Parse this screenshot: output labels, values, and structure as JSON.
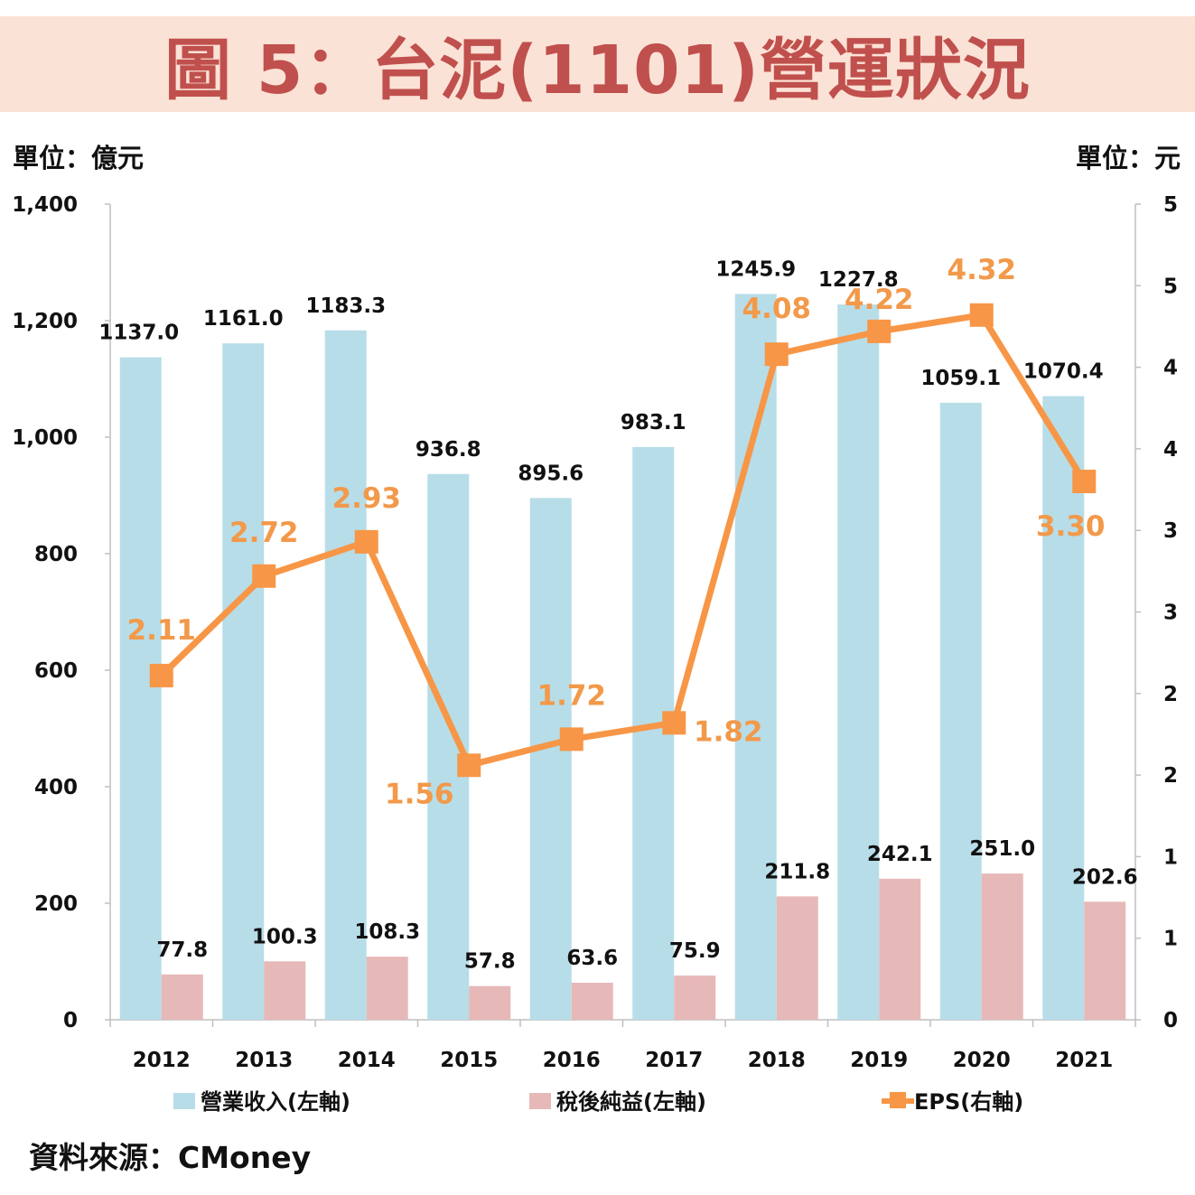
{
  "header": {
    "title": "圖 5：台泥(1101)營運狀況"
  },
  "units": {
    "left": "單位：億元",
    "right": "單位：元"
  },
  "source": "資料來源：CMoney",
  "colors": {
    "revenue": "#b7dde8",
    "net_income": "#e6b9b8",
    "eps": "#f79646",
    "eps_label": "#f2994a"
  },
  "chart_data": {
    "type": "bar",
    "categories": [
      "2012",
      "2013",
      "2014",
      "2015",
      "2016",
      "2017",
      "2018",
      "2019",
      "2020",
      "2021"
    ],
    "series": [
      {
        "name": "營業收入(左軸)",
        "type": "bar",
        "axis": "left",
        "values": [
          1137.0,
          1161.0,
          1183.3,
          936.8,
          895.6,
          983.1,
          1245.9,
          1227.8,
          1059.1,
          1070.4
        ],
        "labels": [
          "1137.0",
          "1161.0",
          "1183.3",
          "936.8",
          "895.6",
          "983.1",
          "1245.9",
          "1227.8",
          "1059.1",
          "1070.4"
        ]
      },
      {
        "name": "稅後純益(左軸)",
        "type": "bar",
        "axis": "left",
        "values": [
          77.8,
          100.3,
          108.3,
          57.8,
          63.6,
          75.9,
          211.8,
          242.1,
          251.0,
          202.6
        ],
        "labels": [
          "77.8",
          "100.3",
          "108.3",
          "57.8",
          "63.6",
          "75.9",
          "211.8",
          "242.1",
          "251.0",
          "202.6"
        ]
      },
      {
        "name": "EPS(右軸)",
        "type": "line",
        "axis": "right",
        "values": [
          2.11,
          2.72,
          2.93,
          1.56,
          1.72,
          1.82,
          4.08,
          4.22,
          4.32,
          3.3
        ],
        "labels": [
          "2.11",
          "2.72",
          "2.93",
          "1.56",
          "1.72",
          "1.82",
          "4.08",
          "4.22",
          "4.32",
          "3.30"
        ]
      }
    ],
    "y_left": {
      "ylim": [
        0,
        1400
      ],
      "ticks": [
        "0",
        "200",
        "400",
        "600",
        "800",
        "1,000",
        "1,200",
        "1,400"
      ]
    },
    "y_right": {
      "ylim": [
        0,
        5
      ],
      "ticks": [
        "0",
        "1",
        "1",
        "2",
        "2",
        "3",
        "3",
        "4",
        "4",
        "5",
        "5"
      ]
    },
    "grid": false,
    "legend_position": "bottom"
  }
}
